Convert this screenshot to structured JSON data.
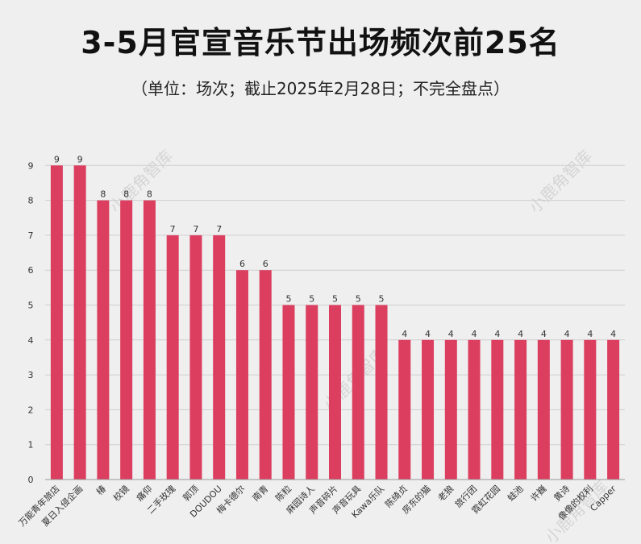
{
  "header": {
    "title": "3-5月官宣音乐节出场频次前25名",
    "subtitle": "（单位：场次；截止2025年2月28日；不完全盘点）"
  },
  "watermark": "小鹿角智库",
  "colors": {
    "bar": "#dc3e5f"
  },
  "chart_data": {
    "type": "bar",
    "title": "3-5月官宣音乐节出场频次前25名",
    "subtitle": "（单位：场次；截止2025年2月28日；不完全盘点）",
    "categories": [
      "万能青年旅店",
      "夏日入侵企画",
      "椿",
      "校镜",
      "痛仰",
      "二手玫瑰",
      "郭顶",
      "DOUDOU",
      "梅卡德尔",
      "南青",
      "陈粒",
      "麻园诗人",
      "声音碎片",
      "声音玩具",
      "Kawa乐队",
      "陈绮贞",
      "房东的猫",
      "老狼",
      "旅行团",
      "霓虹花园",
      "蛙池",
      "许巍",
      "黄诗",
      "像像的权利",
      "Capper"
    ],
    "values": [
      9,
      9,
      8,
      8,
      8,
      7,
      7,
      7,
      6,
      6,
      5,
      5,
      5,
      5,
      5,
      4,
      4,
      4,
      4,
      4,
      4,
      4,
      4,
      4,
      4
    ],
    "yticks": [
      0,
      1,
      2,
      3,
      4,
      5,
      6,
      7,
      8,
      9
    ],
    "ylim": [
      0,
      9.5
    ],
    "grid": true,
    "data_labels": true
  }
}
